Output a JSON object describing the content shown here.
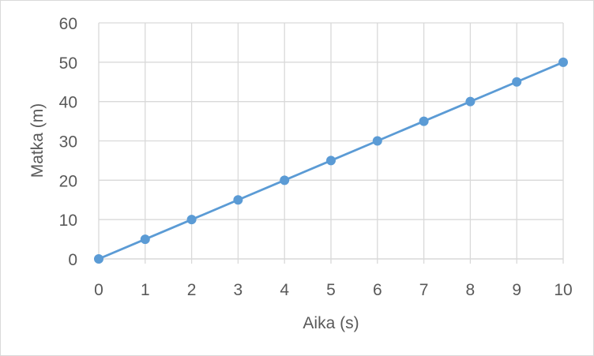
{
  "chart_data": {
    "type": "line",
    "title": "",
    "xlabel": "Aika (s)",
    "ylabel": "Matka (m)",
    "xlim": [
      0,
      10
    ],
    "ylim": [
      0,
      60
    ],
    "x_ticks": [
      0,
      1,
      2,
      3,
      4,
      5,
      6,
      7,
      8,
      9,
      10
    ],
    "y_ticks": [
      0,
      10,
      20,
      30,
      40,
      50,
      60
    ],
    "grid": true,
    "legend": "none",
    "colors": {
      "series": "#5B9BD5",
      "grid": "#d9d9d9",
      "text": "#595959"
    },
    "series": [
      {
        "x": [
          0,
          1,
          2,
          3,
          4,
          5,
          6,
          7,
          8,
          9,
          10
        ],
        "values": [
          0,
          5,
          10,
          15,
          20,
          25,
          30,
          35,
          40,
          45,
          50
        ]
      }
    ]
  }
}
